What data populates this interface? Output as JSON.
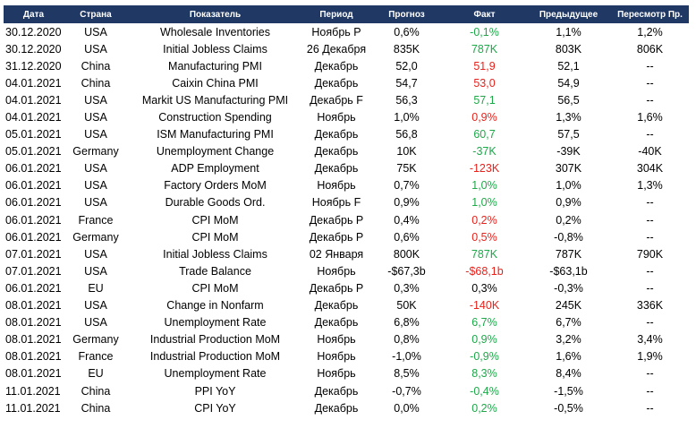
{
  "colors": {
    "header_bg": "#1f3864",
    "header_text": "#ffffff",
    "positive": "#1ea84a",
    "negative": "#e8221c"
  },
  "headers": [
    "Дата",
    "Страна",
    "Показатель",
    "Период",
    "Прогноз",
    "Факт",
    "Предыдущее",
    "Пересмотр Пр."
  ],
  "rows": [
    {
      "date": "30.12.2020",
      "country": "USA",
      "indicator": "Wholesale Inventories",
      "period": "Ноябрь P",
      "forecast": "0,6%",
      "actual": "-0,1%",
      "actual_trend": "up",
      "previous": "1,1%",
      "revision": "1,2%"
    },
    {
      "date": "30.12.2020",
      "country": "USA",
      "indicator": "Initial Jobless Claims",
      "period": "26 Декабря",
      "forecast": "835K",
      "actual": "787K",
      "actual_trend": "up",
      "previous": "803K",
      "revision": "806K"
    },
    {
      "date": "31.12.2020",
      "country": "China",
      "indicator": "Manufacturing PMI",
      "period": "Декабрь",
      "forecast": "52,0",
      "actual": "51,9",
      "actual_trend": "down",
      "previous": "52,1",
      "revision": "--"
    },
    {
      "date": "04.01.2021",
      "country": "China",
      "indicator": "Caixin China PMI",
      "period": "Декабрь",
      "forecast": "54,7",
      "actual": "53,0",
      "actual_trend": "down",
      "previous": "54,9",
      "revision": "--"
    },
    {
      "date": "04.01.2021",
      "country": "USA",
      "indicator": "Markit US Manufacturing PMI",
      "period": "Декабрь F",
      "forecast": "56,3",
      "actual": "57,1",
      "actual_trend": "up",
      "previous": "56,5",
      "revision": "--"
    },
    {
      "date": "04.01.2021",
      "country": "USA",
      "indicator": "Construction Spending",
      "period": "Ноябрь",
      "forecast": "1,0%",
      "actual": "0,9%",
      "actual_trend": "down",
      "previous": "1,3%",
      "revision": "1,6%"
    },
    {
      "date": "05.01.2021",
      "country": "USA",
      "indicator": "ISM Manufacturing PMI",
      "period": "Декабрь",
      "forecast": "56,8",
      "actual": "60,7",
      "actual_trend": "up",
      "previous": "57,5",
      "revision": "--"
    },
    {
      "date": "05.01.2021",
      "country": "Germany",
      "indicator": "Unemployment Change",
      "period": "Декабрь",
      "forecast": "10K",
      "actual": "-37K",
      "actual_trend": "up",
      "previous": "-39K",
      "revision": "-40K"
    },
    {
      "date": "06.01.2021",
      "country": "USA",
      "indicator": "ADP Employment",
      "period": "Декабрь",
      "forecast": "75K",
      "actual": "-123K",
      "actual_trend": "down",
      "previous": "307K",
      "revision": "304K"
    },
    {
      "date": "06.01.2021",
      "country": "USA",
      "indicator": "Factory Orders MoM",
      "period": "Ноябрь",
      "forecast": "0,7%",
      "actual": "1,0%",
      "actual_trend": "up",
      "previous": "1,0%",
      "revision": "1,3%"
    },
    {
      "date": "06.01.2021",
      "country": "USA",
      "indicator": "Durable Goods Ord.",
      "period": "Ноябрь F",
      "forecast": "0,9%",
      "actual": "1,0%",
      "actual_trend": "up",
      "previous": "0,9%",
      "revision": "--"
    },
    {
      "date": "06.01.2021",
      "country": "France",
      "indicator": "CPI MoM",
      "period": "Декабрь P",
      "forecast": "0,4%",
      "actual": "0,2%",
      "actual_trend": "down",
      "previous": "0,2%",
      "revision": "--"
    },
    {
      "date": "06.01.2021",
      "country": "Germany",
      "indicator": "CPI MoM",
      "period": "Декабрь P",
      "forecast": "0,6%",
      "actual": "0,5%",
      "actual_trend": "down",
      "previous": "-0,8%",
      "revision": "--"
    },
    {
      "date": "07.01.2021",
      "country": "USA",
      "indicator": "Initial Jobless Claims",
      "period": "02 Января",
      "forecast": "800K",
      "actual": "787K",
      "actual_trend": "up",
      "previous": "787K",
      "revision": "790K"
    },
    {
      "date": "07.01.2021",
      "country": "USA",
      "indicator": "Trade Balance",
      "period": "Ноябрь",
      "forecast": "-$67,3b",
      "actual": "-$68,1b",
      "actual_trend": "down",
      "previous": "-$63,1b",
      "revision": "--"
    },
    {
      "date": "06.01.2021",
      "country": "EU",
      "indicator": "CPI MoM",
      "period": "Декабрь P",
      "forecast": "0,3%",
      "actual": "0,3%",
      "actual_trend": "neutral",
      "previous": "-0,3%",
      "revision": "--"
    },
    {
      "date": "08.01.2021",
      "country": "USA",
      "indicator": "Change in Nonfarm",
      "period": "Декабрь",
      "forecast": "50K",
      "actual": "-140K",
      "actual_trend": "down",
      "previous": "245K",
      "revision": "336K"
    },
    {
      "date": "08.01.2021",
      "country": "USA",
      "indicator": "Unemployment Rate",
      "period": "Декабрь",
      "forecast": "6,8%",
      "actual": "6,7%",
      "actual_trend": "up",
      "previous": "6,7%",
      "revision": "--"
    },
    {
      "date": "08.01.2021",
      "country": "Germany",
      "indicator": "Industrial Production MoM",
      "period": "Ноябрь",
      "forecast": "0,8%",
      "actual": "0,9%",
      "actual_trend": "up",
      "previous": "3,2%",
      "revision": "3,4%"
    },
    {
      "date": "08.01.2021",
      "country": "France",
      "indicator": "Industrial Production MoM",
      "period": "Ноябрь",
      "forecast": "-1,0%",
      "actual": "-0,9%",
      "actual_trend": "up",
      "previous": "1,6%",
      "revision": "1,9%"
    },
    {
      "date": "08.01.2021",
      "country": "EU",
      "indicator": "Unemployment Rate",
      "period": "Ноябрь",
      "forecast": "8,5%",
      "actual": "8,3%",
      "actual_trend": "up",
      "previous": "8,4%",
      "revision": "--"
    },
    {
      "date": "11.01.2021",
      "country": "China",
      "indicator": "PPI YoY",
      "period": "Декабрь",
      "forecast": "-0,7%",
      "actual": "-0,4%",
      "actual_trend": "up",
      "previous": "-1,5%",
      "revision": "--"
    },
    {
      "date": "11.01.2021",
      "country": "China",
      "indicator": "CPI YoY",
      "period": "Декабрь",
      "forecast": "0,0%",
      "actual": "0,2%",
      "actual_trend": "up",
      "previous": "-0,5%",
      "revision": "--"
    }
  ]
}
